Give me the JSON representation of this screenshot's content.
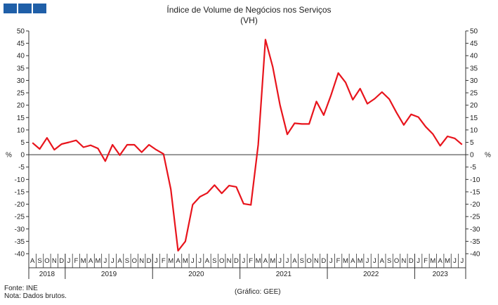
{
  "logo_icon": "ine-logo-blocks",
  "chart_data": {
    "type": "line",
    "title": "Índice de Volume de Negócios nos Serviços",
    "subtitle": "(VH)",
    "ylabel_left": "%",
    "ylabel_right": "%",
    "ylim": [
      -40,
      50
    ],
    "yticks": [
      50,
      45,
      40,
      35,
      30,
      25,
      20,
      15,
      10,
      5,
      0,
      -5,
      -10,
      -15,
      -20,
      -25,
      -30,
      -35,
      -40
    ],
    "grid": false,
    "line_color": "#e8141c",
    "months": [
      "A",
      "S",
      "O",
      "N",
      "D",
      "J",
      "F",
      "M",
      "A",
      "M",
      "J",
      "J",
      "A",
      "S",
      "O",
      "N",
      "D",
      "J",
      "F",
      "M",
      "A",
      "M",
      "J",
      "J",
      "A",
      "S",
      "O",
      "N",
      "D",
      "J",
      "F",
      "M",
      "A",
      "M",
      "J",
      "J",
      "A",
      "S",
      "O",
      "N",
      "D",
      "J",
      "F",
      "M",
      "A",
      "M",
      "J",
      "J",
      "A",
      "S",
      "O",
      "N",
      "D",
      "J",
      "F",
      "M",
      "A",
      "M",
      "J",
      "J"
    ],
    "years": [
      {
        "label": "2018",
        "count": 5
      },
      {
        "label": "2019",
        "count": 12
      },
      {
        "label": "2020",
        "count": 12
      },
      {
        "label": "2021",
        "count": 12
      },
      {
        "label": "2022",
        "count": 12
      },
      {
        "label": "2023",
        "count": 7
      }
    ],
    "series": [
      {
        "values": [
          4.8,
          2.3,
          6.8,
          2.0,
          4.3,
          5.0,
          5.8,
          3.0,
          3.8,
          2.5,
          -2.6,
          4.0,
          -0.2,
          4.0,
          4.0,
          1.0,
          4.0,
          2.0,
          0.3,
          -14.0,
          -38.8,
          -35.0,
          -20.2,
          -17.0,
          -15.5,
          -12.3,
          -15.6,
          -12.5,
          -13.0,
          -19.8,
          -20.3,
          4.0,
          46.5,
          35.5,
          20.0,
          8.2,
          12.7,
          12.4,
          12.4,
          21.5,
          16.0,
          24.0,
          33.0,
          29.2,
          22.2,
          26.7,
          20.6,
          22.6,
          25.3,
          22.5,
          17.0,
          12.0,
          16.3,
          15.2,
          11.3,
          8.3,
          3.6,
          7.4,
          6.6,
          4.1
        ]
      }
    ]
  },
  "footer": {
    "source": "Fonte: INE",
    "note": "Nota: Dados brutos.",
    "credit": "(Gráfico: GEE)"
  }
}
